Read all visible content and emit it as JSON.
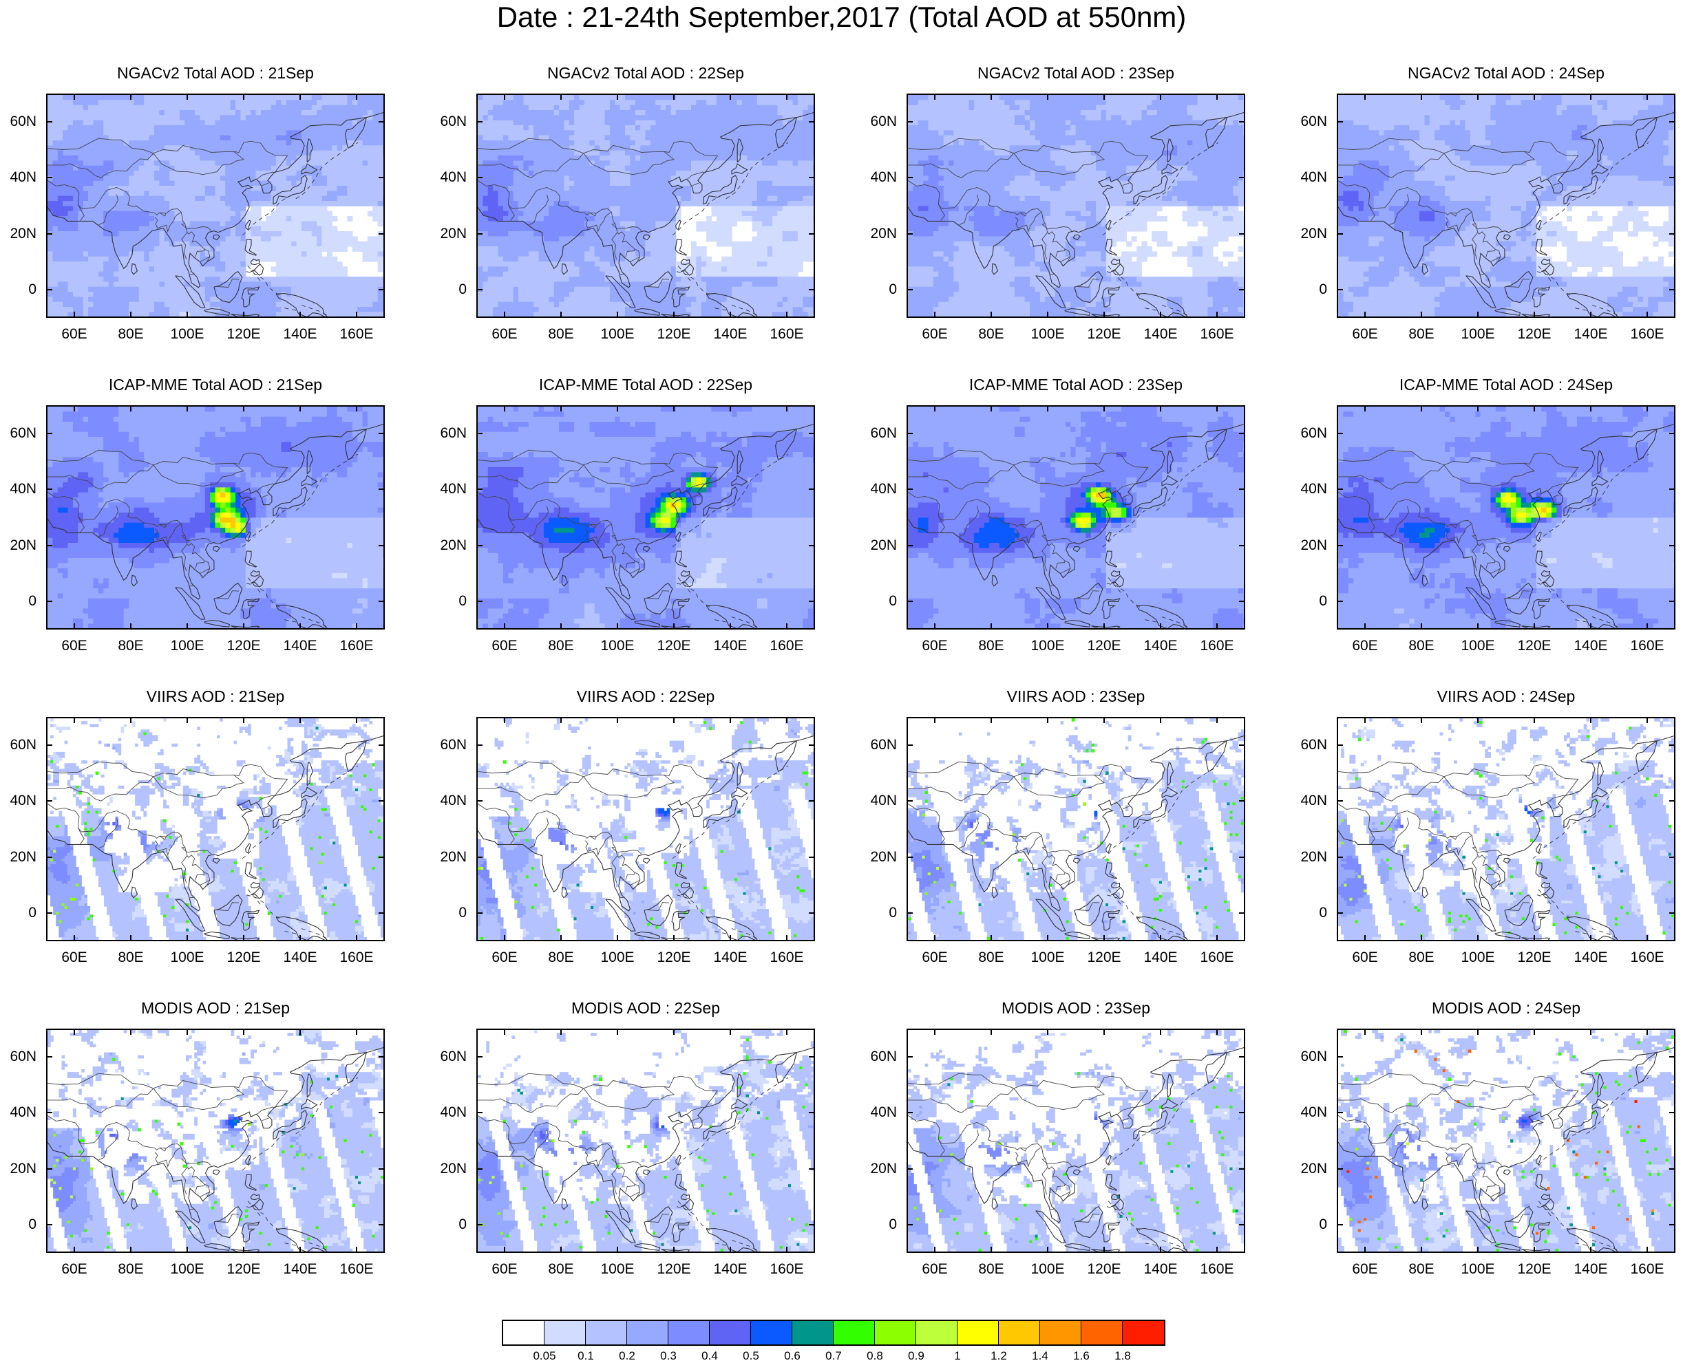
{
  "title": "Date : 21-24th September,2017 (Total AOD at 550nm)",
  "rows": [
    {
      "dataset": "NGACv2",
      "titles": [
        "NGACv2 Total AOD : 21Sep",
        "NGACv2 Total AOD : 22Sep",
        "NGACv2 Total AOD : 23Sep",
        "NGACv2 Total AOD : 24Sep"
      ]
    },
    {
      "dataset": "ICAP-MME",
      "titles": [
        "ICAP-MME Total AOD : 21Sep",
        "ICAP-MME Total AOD : 22Sep",
        "ICAP-MME Total AOD : 23Sep",
        "ICAP-MME Total AOD : 24Sep"
      ]
    },
    {
      "dataset": "VIIRS",
      "titles": [
        "VIIRS AOD : 21Sep",
        "VIIRS AOD : 22Sep",
        "VIIRS AOD : 23Sep",
        "VIIRS AOD : 24Sep"
      ]
    },
    {
      "dataset": "MODIS",
      "titles": [
        "MODIS AOD : 21Sep",
        "MODIS AOD : 22Sep",
        "MODIS AOD : 23Sep",
        "MODIS AOD : 24Sep"
      ]
    }
  ],
  "lat_labels": [
    "60N",
    "40N",
    "20N",
    "0"
  ],
  "lat_values": [
    60,
    40,
    20,
    0
  ],
  "lon_labels": [
    "60E",
    "80E",
    "100E",
    "120E",
    "140E",
    "160E"
  ],
  "lon_values": [
    60,
    80,
    100,
    120,
    140,
    160
  ],
  "lat_range": [
    -10,
    70
  ],
  "lon_range": [
    50,
    170
  ],
  "colorbar": {
    "labels": [
      "0.05",
      "0.1",
      "0.2",
      "0.3",
      "0.4",
      "0.5",
      "0.6",
      "0.7",
      "0.8",
      "0.9",
      "1",
      "1.2",
      "1.4",
      "1.6",
      "1.8"
    ],
    "colors": [
      "#ffffff",
      "#d2dcff",
      "#b4c3ff",
      "#96a9ff",
      "#7d8cff",
      "#5f64f5",
      "#0a5aff",
      "#00968c",
      "#32ff00",
      "#8cff00",
      "#beff3c",
      "#ffff00",
      "#ffc800",
      "#ff9600",
      "#ff6400",
      "#ff1e00"
    ]
  }
}
